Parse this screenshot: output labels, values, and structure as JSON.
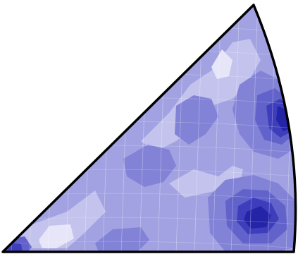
{
  "chart_data": {
    "type": "heatmap",
    "projection": "inverse-pole-figure-sector",
    "colormap": {
      "levels": [
        "#e6e6f8",
        "#c3c3ed",
        "#a2a2e2",
        "#8282d6",
        "#6262cb",
        "#3e3ebd",
        "#2424a8"
      ]
    },
    "palette": {
      "background": "#ffffff",
      "outline": "#000000",
      "grid": "#ffffff"
    },
    "legend": "none",
    "grid": true
  }
}
